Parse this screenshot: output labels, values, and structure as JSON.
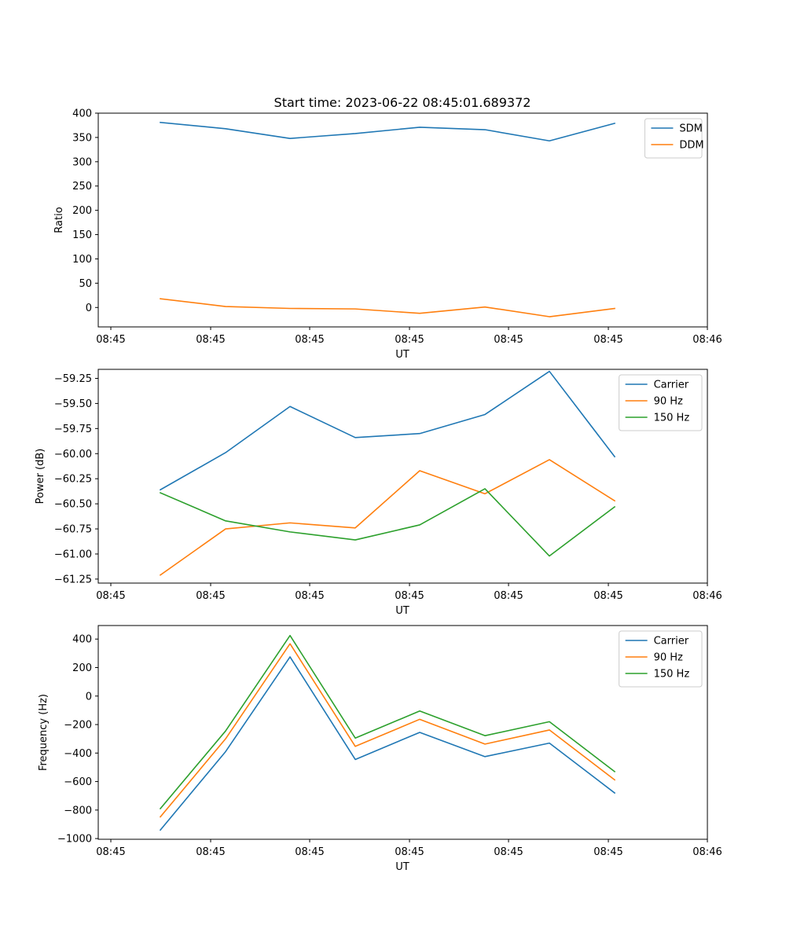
{
  "title": "Start time: 2023-06-22 08:45:01.689372",
  "colors": {
    "blue": "#1f77b4",
    "orange": "#ff7f0e",
    "green": "#2ca02c"
  },
  "chart_data": [
    {
      "type": "line",
      "title": "Start time: 2023-06-22 08:45:01.689372",
      "xlabel": "UT",
      "ylabel": "Ratio",
      "xtick_labels": [
        "08:45",
        "08:45",
        "08:45",
        "08:45",
        "08:45",
        "08:45",
        "08:46"
      ],
      "yticks": [
        0,
        50,
        100,
        150,
        200,
        250,
        300,
        350,
        400
      ],
      "ytick_labels": [
        "0",
        "50",
        "100",
        "150",
        "200",
        "250",
        "300",
        "350",
        "400"
      ],
      "ylim": [
        -40,
        400
      ],
      "legend": "top-right",
      "grid": false,
      "series": [
        {
          "name": "SDM",
          "color": "#1f77b4",
          "values": [
            381,
            368,
            348,
            358,
            371,
            366,
            343,
            379
          ]
        },
        {
          "name": "DDM",
          "color": "#ff7f0e",
          "values": [
            18,
            2,
            -2,
            -3,
            -12,
            1,
            -19,
            -2
          ]
        }
      ]
    },
    {
      "type": "line",
      "xlabel": "UT",
      "ylabel": "Power (dB)",
      "xtick_labels": [
        "08:45",
        "08:45",
        "08:45",
        "08:45",
        "08:45",
        "08:45",
        "08:46"
      ],
      "yticks": [
        -61.25,
        -61.0,
        -60.75,
        -60.5,
        -60.25,
        -60.0,
        -59.75,
        -59.5,
        -59.25
      ],
      "ytick_labels": [
        "−61.25",
        "−61.00",
        "−60.75",
        "−60.50",
        "−60.25",
        "−60.00",
        "−59.75",
        "−59.50",
        "−59.25"
      ],
      "ylim": [
        -61.29,
        -59.16
      ],
      "legend": "top-right",
      "grid": false,
      "series": [
        {
          "name": "Carrier",
          "color": "#1f77b4",
          "values": [
            -60.36,
            -59.99,
            -59.53,
            -59.84,
            -59.8,
            -59.61,
            -59.18,
            -60.03
          ]
        },
        {
          "name": "90 Hz",
          "color": "#ff7f0e",
          "values": [
            -61.21,
            -60.75,
            -60.69,
            -60.74,
            -60.17,
            -60.4,
            -60.06,
            -60.47
          ]
        },
        {
          "name": "150 Hz",
          "color": "#2ca02c",
          "values": [
            -60.39,
            -60.67,
            -60.78,
            -60.86,
            -60.71,
            -60.35,
            -61.02,
            -60.53
          ]
        }
      ]
    },
    {
      "type": "line",
      "xlabel": "UT",
      "ylabel": "Frequency (Hz)",
      "xtick_labels": [
        "08:45",
        "08:45",
        "08:45",
        "08:45",
        "08:45",
        "08:45",
        "08:46"
      ],
      "yticks": [
        -1000,
        -800,
        -600,
        -400,
        -200,
        0,
        200,
        400
      ],
      "ytick_labels": [
        "−1000",
        "−800",
        "−600",
        "−400",
        "−200",
        "0",
        "200",
        "400"
      ],
      "ylim": [
        -1005,
        495
      ],
      "legend": "top-right",
      "grid": false,
      "series": [
        {
          "name": "Carrier",
          "color": "#1f77b4",
          "values": [
            -940,
            -390,
            275,
            -445,
            -255,
            -425,
            -330,
            -680
          ]
        },
        {
          "name": "90 Hz",
          "color": "#ff7f0e",
          "values": [
            -848,
            -300,
            367,
            -353,
            -163,
            -337,
            -238,
            -588
          ]
        },
        {
          "name": "150 Hz",
          "color": "#2ca02c",
          "values": [
            -790,
            -245,
            425,
            -295,
            -105,
            -278,
            -180,
            -530
          ]
        }
      ]
    }
  ]
}
